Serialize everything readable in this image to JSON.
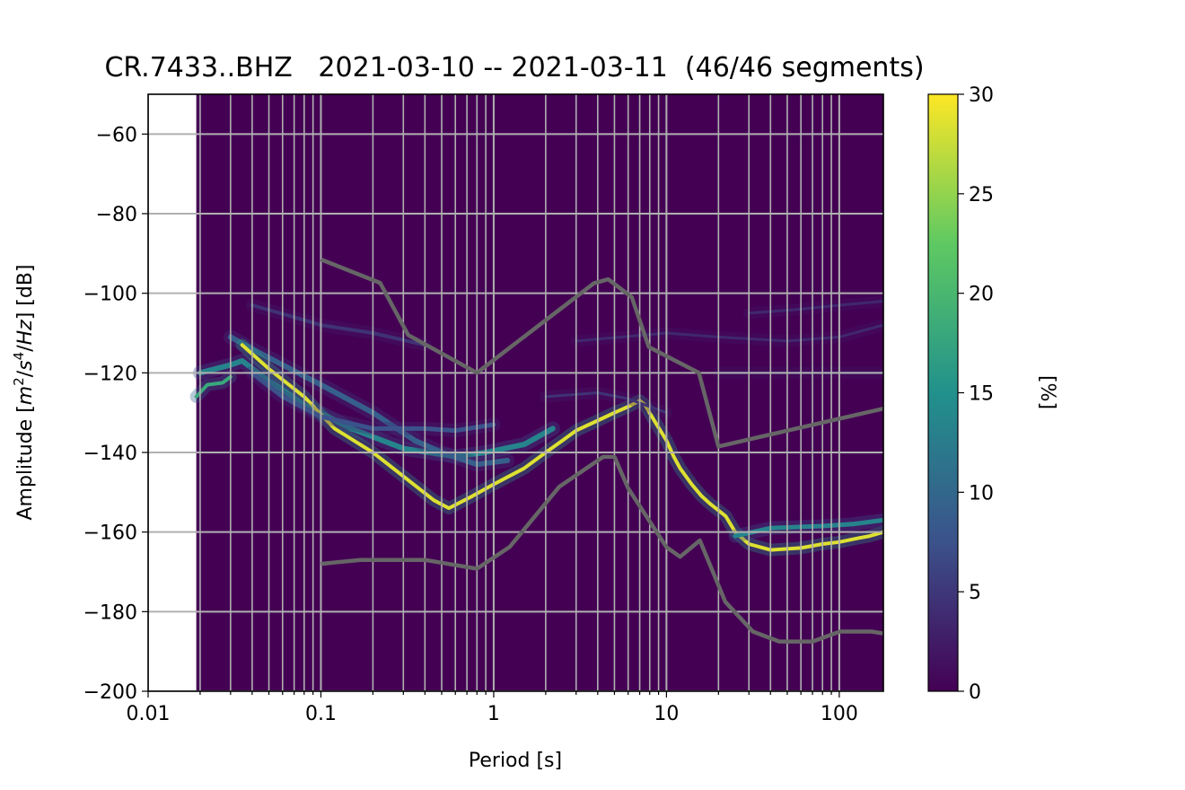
{
  "chart_data": {
    "type": "heatmap",
    "title": "CR.7433..BHZ   2021-03-10 -- 2021-03-11  (46/46 segments)",
    "xlabel": "Period [s]",
    "ylabel_parts": [
      "Amplitude [",
      "m",
      "2",
      "/",
      "s",
      "4",
      "/",
      "Hz",
      "] [dB]"
    ],
    "x_scale": "log",
    "xlim": [
      0.01,
      180
    ],
    "ylim": [
      -200,
      -50
    ],
    "grid": true,
    "x_ticks": [
      0.01,
      0.1,
      1,
      10,
      100
    ],
    "x_tick_labels": [
      "0.01",
      "0.1",
      "1",
      "10",
      "100"
    ],
    "y_ticks": [
      -200,
      -180,
      -160,
      -140,
      -120,
      -100,
      -80,
      -60
    ],
    "y_tick_labels": [
      "−200",
      "−180",
      "−160",
      "−140",
      "−120",
      "−100",
      "−80",
      "−60"
    ],
    "colorbar": {
      "label": "[%]",
      "range": [
        0,
        30
      ],
      "ticks": [
        0,
        5,
        10,
        15,
        20,
        25,
        30
      ],
      "tick_labels": [
        "0",
        "5",
        "10",
        "15",
        "20",
        "25",
        "30"
      ],
      "colormap": "viridis",
      "colors": [
        "#440154",
        "#3b528b",
        "#21918c",
        "#5ec962",
        "#fde725"
      ]
    },
    "data_start_period": 0.019,
    "reference_line_color": "#666666",
    "new_high_noise_model": [
      [
        0.1,
        -91.5
      ],
      [
        0.22,
        -97.4
      ],
      [
        0.32,
        -110.5
      ],
      [
        0.8,
        -120
      ],
      [
        3.8,
        -97.5
      ],
      [
        4.6,
        -96.5
      ],
      [
        6.3,
        -101
      ],
      [
        7.9,
        -113.5
      ],
      [
        15.4,
        -120
      ],
      [
        20,
        -138.5
      ],
      [
        180,
        -129
      ]
    ],
    "new_low_noise_model": [
      [
        0.1,
        -168
      ],
      [
        0.17,
        -167
      ],
      [
        0.4,
        -167
      ],
      [
        0.8,
        -169.2
      ],
      [
        1.24,
        -163.7
      ],
      [
        2.4,
        -148.6
      ],
      [
        4.3,
        -141.1
      ],
      [
        5,
        -141.1
      ],
      [
        6,
        -149
      ],
      [
        10,
        -163.8
      ],
      [
        12,
        -166.2
      ],
      [
        15.6,
        -162.1
      ],
      [
        21.9,
        -177.5
      ],
      [
        31.6,
        -185
      ],
      [
        45,
        -187.5
      ],
      [
        70,
        -187.5
      ],
      [
        101,
        -185
      ],
      [
        154,
        -185
      ],
      [
        180,
        -185.5
      ]
    ],
    "density_ridges": [
      {
        "points": [
          [
            0.019,
            -126
          ],
          [
            0.022,
            -123
          ],
          [
            0.027,
            -122.5
          ],
          [
            0.03,
            -121
          ]
        ],
        "weight": 0.6,
        "width": 4
      },
      {
        "points": [
          [
            0.02,
            -120
          ],
          [
            0.03,
            -118
          ],
          [
            0.035,
            -117
          ],
          [
            0.05,
            -122
          ],
          [
            0.08,
            -128
          ],
          [
            0.15,
            -134
          ],
          [
            0.3,
            -139
          ],
          [
            0.6,
            -141
          ],
          [
            0.9,
            -140
          ],
          [
            1.5,
            -138
          ],
          [
            2.2,
            -134
          ]
        ],
        "weight": 0.45,
        "width": 6
      },
      {
        "points": [
          [
            0.03,
            -111
          ],
          [
            0.04,
            -114
          ],
          [
            0.06,
            -118
          ],
          [
            0.1,
            -123
          ],
          [
            0.2,
            -130
          ],
          [
            0.35,
            -137
          ],
          [
            0.5,
            -140
          ],
          [
            0.8,
            -143
          ],
          [
            1.2,
            -142
          ]
        ],
        "weight": 0.3,
        "width": 6
      },
      {
        "points": [
          [
            0.035,
            -113
          ],
          [
            0.05,
            -119
          ],
          [
            0.08,
            -126
          ],
          [
            0.12,
            -134
          ],
          [
            0.2,
            -140
          ],
          [
            0.3,
            -146
          ],
          [
            0.45,
            -152
          ],
          [
            0.55,
            -154
          ],
          [
            0.75,
            -151
          ],
          [
            1,
            -148
          ],
          [
            1.5,
            -144
          ],
          [
            2,
            -140
          ],
          [
            2.5,
            -137
          ],
          [
            3,
            -134.5
          ],
          [
            4,
            -132
          ],
          [
            5,
            -130
          ],
          [
            6,
            -128.5
          ],
          [
            7,
            -127
          ],
          [
            7.5,
            -128
          ],
          [
            8.5,
            -132
          ],
          [
            10,
            -137
          ],
          [
            11,
            -141
          ],
          [
            12,
            -144
          ],
          [
            14,
            -148
          ],
          [
            16,
            -151
          ],
          [
            18,
            -153
          ],
          [
            22,
            -156
          ],
          [
            25,
            -160
          ],
          [
            30,
            -163
          ],
          [
            40,
            -164.5
          ],
          [
            60,
            -164
          ],
          [
            80,
            -163
          ],
          [
            100,
            -162.5
          ],
          [
            130,
            -161.5
          ],
          [
            150,
            -161
          ],
          [
            180,
            -160
          ]
        ],
        "weight": 0.95,
        "width": 4
      },
      {
        "points": [
          [
            0.04,
            -120
          ],
          [
            0.06,
            -126
          ],
          [
            0.1,
            -131
          ],
          [
            0.2,
            -134
          ],
          [
            0.4,
            -134
          ],
          [
            0.6,
            -134.5
          ],
          [
            1,
            -133
          ]
        ],
        "weight": 0.25,
        "width": 5
      },
      {
        "points": [
          [
            0.04,
            -103
          ],
          [
            0.07,
            -106
          ],
          [
            0.1,
            -108
          ],
          [
            0.2,
            -110
          ],
          [
            0.4,
            -113
          ]
        ],
        "weight": 0.15,
        "width": 4
      },
      {
        "points": [
          [
            3,
            -112
          ],
          [
            10,
            -110
          ],
          [
            20,
            -111
          ],
          [
            50,
            -112
          ],
          [
            100,
            -111
          ],
          [
            180,
            -108
          ]
        ],
        "weight": 0.12,
        "width": 3
      },
      {
        "points": [
          [
            30,
            -105
          ],
          [
            60,
            -104
          ],
          [
            100,
            -103
          ],
          [
            180,
            -102
          ]
        ],
        "weight": 0.12,
        "width": 3
      },
      {
        "points": [
          [
            20,
            -120
          ],
          [
            60,
            -120
          ],
          [
            180,
            -120
          ]
        ],
        "weight": 0.12,
        "width": 3
      },
      {
        "points": [
          [
            25,
            -161
          ],
          [
            40,
            -159
          ],
          [
            80,
            -158.5
          ],
          [
            120,
            -158
          ],
          [
            180,
            -157
          ]
        ],
        "weight": 0.45,
        "width": 5
      },
      {
        "points": [
          [
            2,
            -126
          ],
          [
            4,
            -125
          ],
          [
            6,
            -126.5
          ],
          [
            10,
            -130
          ]
        ],
        "weight": 0.15,
        "width": 3
      }
    ]
  }
}
